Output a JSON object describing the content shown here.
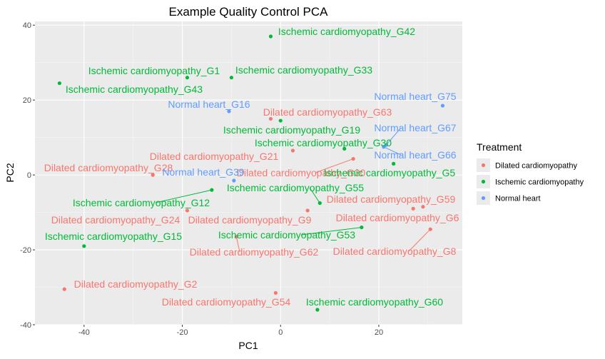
{
  "chart_data": {
    "type": "scatter",
    "title": "Example Quality Control PCA",
    "xlabel": "PC1",
    "ylabel": "PC2",
    "xlim": [
      -50,
      37
    ],
    "ylim": [
      -40,
      41
    ],
    "xticks": [
      "-40",
      "-20",
      "0",
      "20"
    ],
    "yticks": [
      "40",
      "20",
      "0",
      "-20",
      "-40"
    ],
    "grid": true,
    "legend": {
      "title": "Treatment",
      "position": "right",
      "entries": [
        "Dilated cardiomyopathy",
        "Ischemic cardiomyopathy",
        "Normal heart"
      ]
    },
    "series": [
      {
        "name": "Dilated cardiomyopathy",
        "color": "#F8766D",
        "points": [
          {
            "label": "Dilated cardiomyopathy_G63",
            "x": -2,
            "y": 15
          },
          {
            "label": "Dilated cardiomyopathy_G21",
            "x": 2.5,
            "y": 6.5
          },
          {
            "label": "Dilated cardiomyopathy_G28",
            "x": -26,
            "y": 0
          },
          {
            "label": "Dilated cardiomyopathy_G30",
            "x": 14.8,
            "y": 4.3
          },
          {
            "label": "Dilated cardiomyopathy_G59",
            "x": 29,
            "y": -8.5
          },
          {
            "label": "Dilated cardiomyopathy_G6",
            "x": 27,
            "y": -9
          },
          {
            "label": "Dilated cardiomyopathy_G24",
            "x": -19,
            "y": -9.5
          },
          {
            "label": "Dilated cardiomyopathy_G9",
            "x": 5.5,
            "y": -9.5
          },
          {
            "label": "Dilated cardiomyopathy_G62",
            "x": -9,
            "y": -16.5
          },
          {
            "label": "Dilated cardiomyopathy_G8",
            "x": 30.5,
            "y": -14.5
          },
          {
            "label": "Dilated cardiomyopathy_G2",
            "x": -44,
            "y": -30.5
          },
          {
            "label": "Dilated cardiomyopathy_G54",
            "x": -1,
            "y": -31.5
          }
        ]
      },
      {
        "name": "Ischemic cardiomyopathy",
        "color": "#00BA38",
        "points": [
          {
            "label": "Ischemic cardiomyopathy_G42",
            "x": -2,
            "y": 37
          },
          {
            "label": "Ischemic cardiomyopathy_G1",
            "x": -19,
            "y": 26
          },
          {
            "label": "Ischemic cardiomyopathy_G33",
            "x": -10,
            "y": 26
          },
          {
            "label": "Ischemic cardiomyopathy_G43",
            "x": -45,
            "y": 24.5
          },
          {
            "label": "Ischemic cardiomyopathy_G19",
            "x": 0,
            "y": 14.5
          },
          {
            "label": "Ischemic cardiomyopathy_G30",
            "x": 13,
            "y": 7
          },
          {
            "label": "Ischemic cardiomyopathy_G5",
            "x": 23,
            "y": 3
          },
          {
            "label": "Ischemic cardiomyopathy_G55",
            "x": 8,
            "y": -7.5
          },
          {
            "label": "Ischemic cardiomyopathy_G12",
            "x": -14,
            "y": -4
          },
          {
            "label": "Ischemic cardiomyopathy_G53",
            "x": 16.5,
            "y": -14
          },
          {
            "label": "Ischemic cardiomyopathy_G15",
            "x": -40,
            "y": -19
          },
          {
            "label": "Ischemic cardiomyopathy_G60",
            "x": 7.5,
            "y": -36
          }
        ]
      },
      {
        "name": "Normal heart",
        "color": "#619CFF",
        "points": [
          {
            "label": "Normal heart_G75",
            "x": 33,
            "y": 18.5
          },
          {
            "label": "Normal heart_G16",
            "x": -10.5,
            "y": 17
          },
          {
            "label": "Normal heart_G67",
            "x": 21.5,
            "y": 8
          },
          {
            "label": "Normal heart_G66",
            "x": 21,
            "y": 7.5
          },
          {
            "label": "Normal heart_G39",
            "x": -9.5,
            "y": -1.5
          }
        ]
      }
    ]
  }
}
